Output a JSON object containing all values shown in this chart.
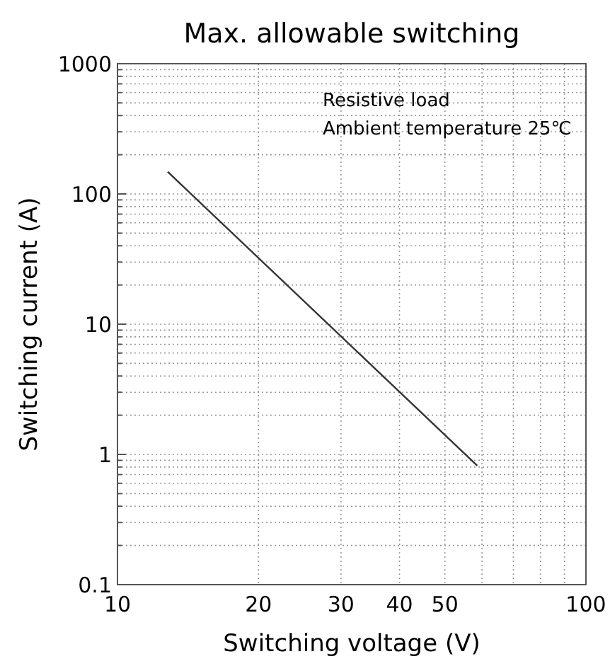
{
  "chart_data": {
    "type": "line",
    "title": "Max. allowable switching",
    "xlabel": "Switching voltage (V)",
    "ylabel": "Switching current (A)",
    "annotations": [
      "Resistive load",
      "Ambient temperature 25℃"
    ],
    "log": "xy",
    "grid": true,
    "marker": "none",
    "line_style": "solid",
    "xlim": [
      10,
      100
    ],
    "ylim": [
      0.1,
      1000
    ],
    "xticks": [
      10,
      20,
      30,
      40,
      50,
      {
        "value": 60,
        "label": null
      },
      {
        "value": 70,
        "label": null
      },
      {
        "value": 80,
        "label": null
      },
      {
        "value": 90,
        "label": null
      },
      100
    ],
    "yticks": [
      0.1,
      {
        "value": 0.2,
        "label": null
      },
      {
        "value": 0.3,
        "label": null
      },
      {
        "value": 0.4,
        "label": null
      },
      {
        "value": 0.5,
        "label": null
      },
      {
        "value": 0.6,
        "label": null
      },
      {
        "value": 0.7,
        "label": null
      },
      {
        "value": 0.8,
        "label": null
      },
      {
        "value": 0.9,
        "label": null
      },
      1,
      {
        "value": 2,
        "label": null
      },
      {
        "value": 3,
        "label": null
      },
      {
        "value": 4,
        "label": null
      },
      {
        "value": 5,
        "label": null
      },
      {
        "value": 6,
        "label": null
      },
      {
        "value": 7,
        "label": null
      },
      {
        "value": 8,
        "label": null
      },
      {
        "value": 9,
        "label": null
      },
      10,
      {
        "value": 20,
        "label": null
      },
      {
        "value": 30,
        "label": null
      },
      {
        "value": 40,
        "label": null
      },
      {
        "value": 50,
        "label": null
      },
      {
        "value": 60,
        "label": null
      },
      {
        "value": 70,
        "label": null
      },
      {
        "value": 80,
        "label": null
      },
      {
        "value": 90,
        "label": null
      },
      100,
      {
        "value": 200,
        "label": null
      },
      {
        "value": 300,
        "label": null
      },
      {
        "value": 400,
        "label": null
      },
      {
        "value": 500,
        "label": null
      },
      {
        "value": 600,
        "label": null
      },
      {
        "value": 700,
        "label": null
      },
      {
        "value": 800,
        "label": null
      },
      {
        "value": 900,
        "label": null
      },
      1000
    ],
    "x": [
      12.8,
      58.6
    ],
    "series": [
      {
        "color": "#333333",
        "values": [
          148,
          0.82
        ]
      }
    ]
  }
}
